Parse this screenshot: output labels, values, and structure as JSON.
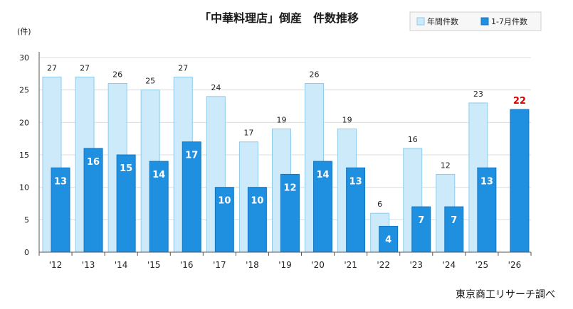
{
  "chart_data": {
    "type": "bar",
    "title": "「中華料理店」倒産　件数推移",
    "ylabel": "(件)",
    "xlabel": "",
    "ylim": [
      0,
      30
    ],
    "yticks": [
      0,
      5,
      10,
      15,
      20,
      25,
      30
    ],
    "grid": true,
    "legend_position": "top-right",
    "categories": [
      "'12",
      "'13",
      "'14",
      "'15",
      "'16",
      "'17",
      "'18",
      "'19",
      "'20",
      "'21",
      "'22",
      "'23",
      "'24",
      "'25",
      "'26"
    ],
    "series": [
      {
        "name": "年間件数",
        "color": "#cdeafb",
        "edge": "#8fcbea",
        "values": [
          27,
          27,
          26,
          25,
          27,
          24,
          17,
          19,
          26,
          19,
          6,
          16,
          12,
          23,
          null
        ]
      },
      {
        "name": "1-7月件数",
        "color": "#1f8fe0",
        "edge": "#1676bf",
        "values": [
          13,
          16,
          15,
          14,
          17,
          10,
          10,
          12,
          14,
          13,
          4,
          7,
          7,
          13,
          22
        ]
      }
    ],
    "highlight": {
      "category": "'26",
      "series": "1-7月件数",
      "value": 22,
      "color": "#e00000"
    }
  },
  "source": "東京商工リサーチ調べ"
}
